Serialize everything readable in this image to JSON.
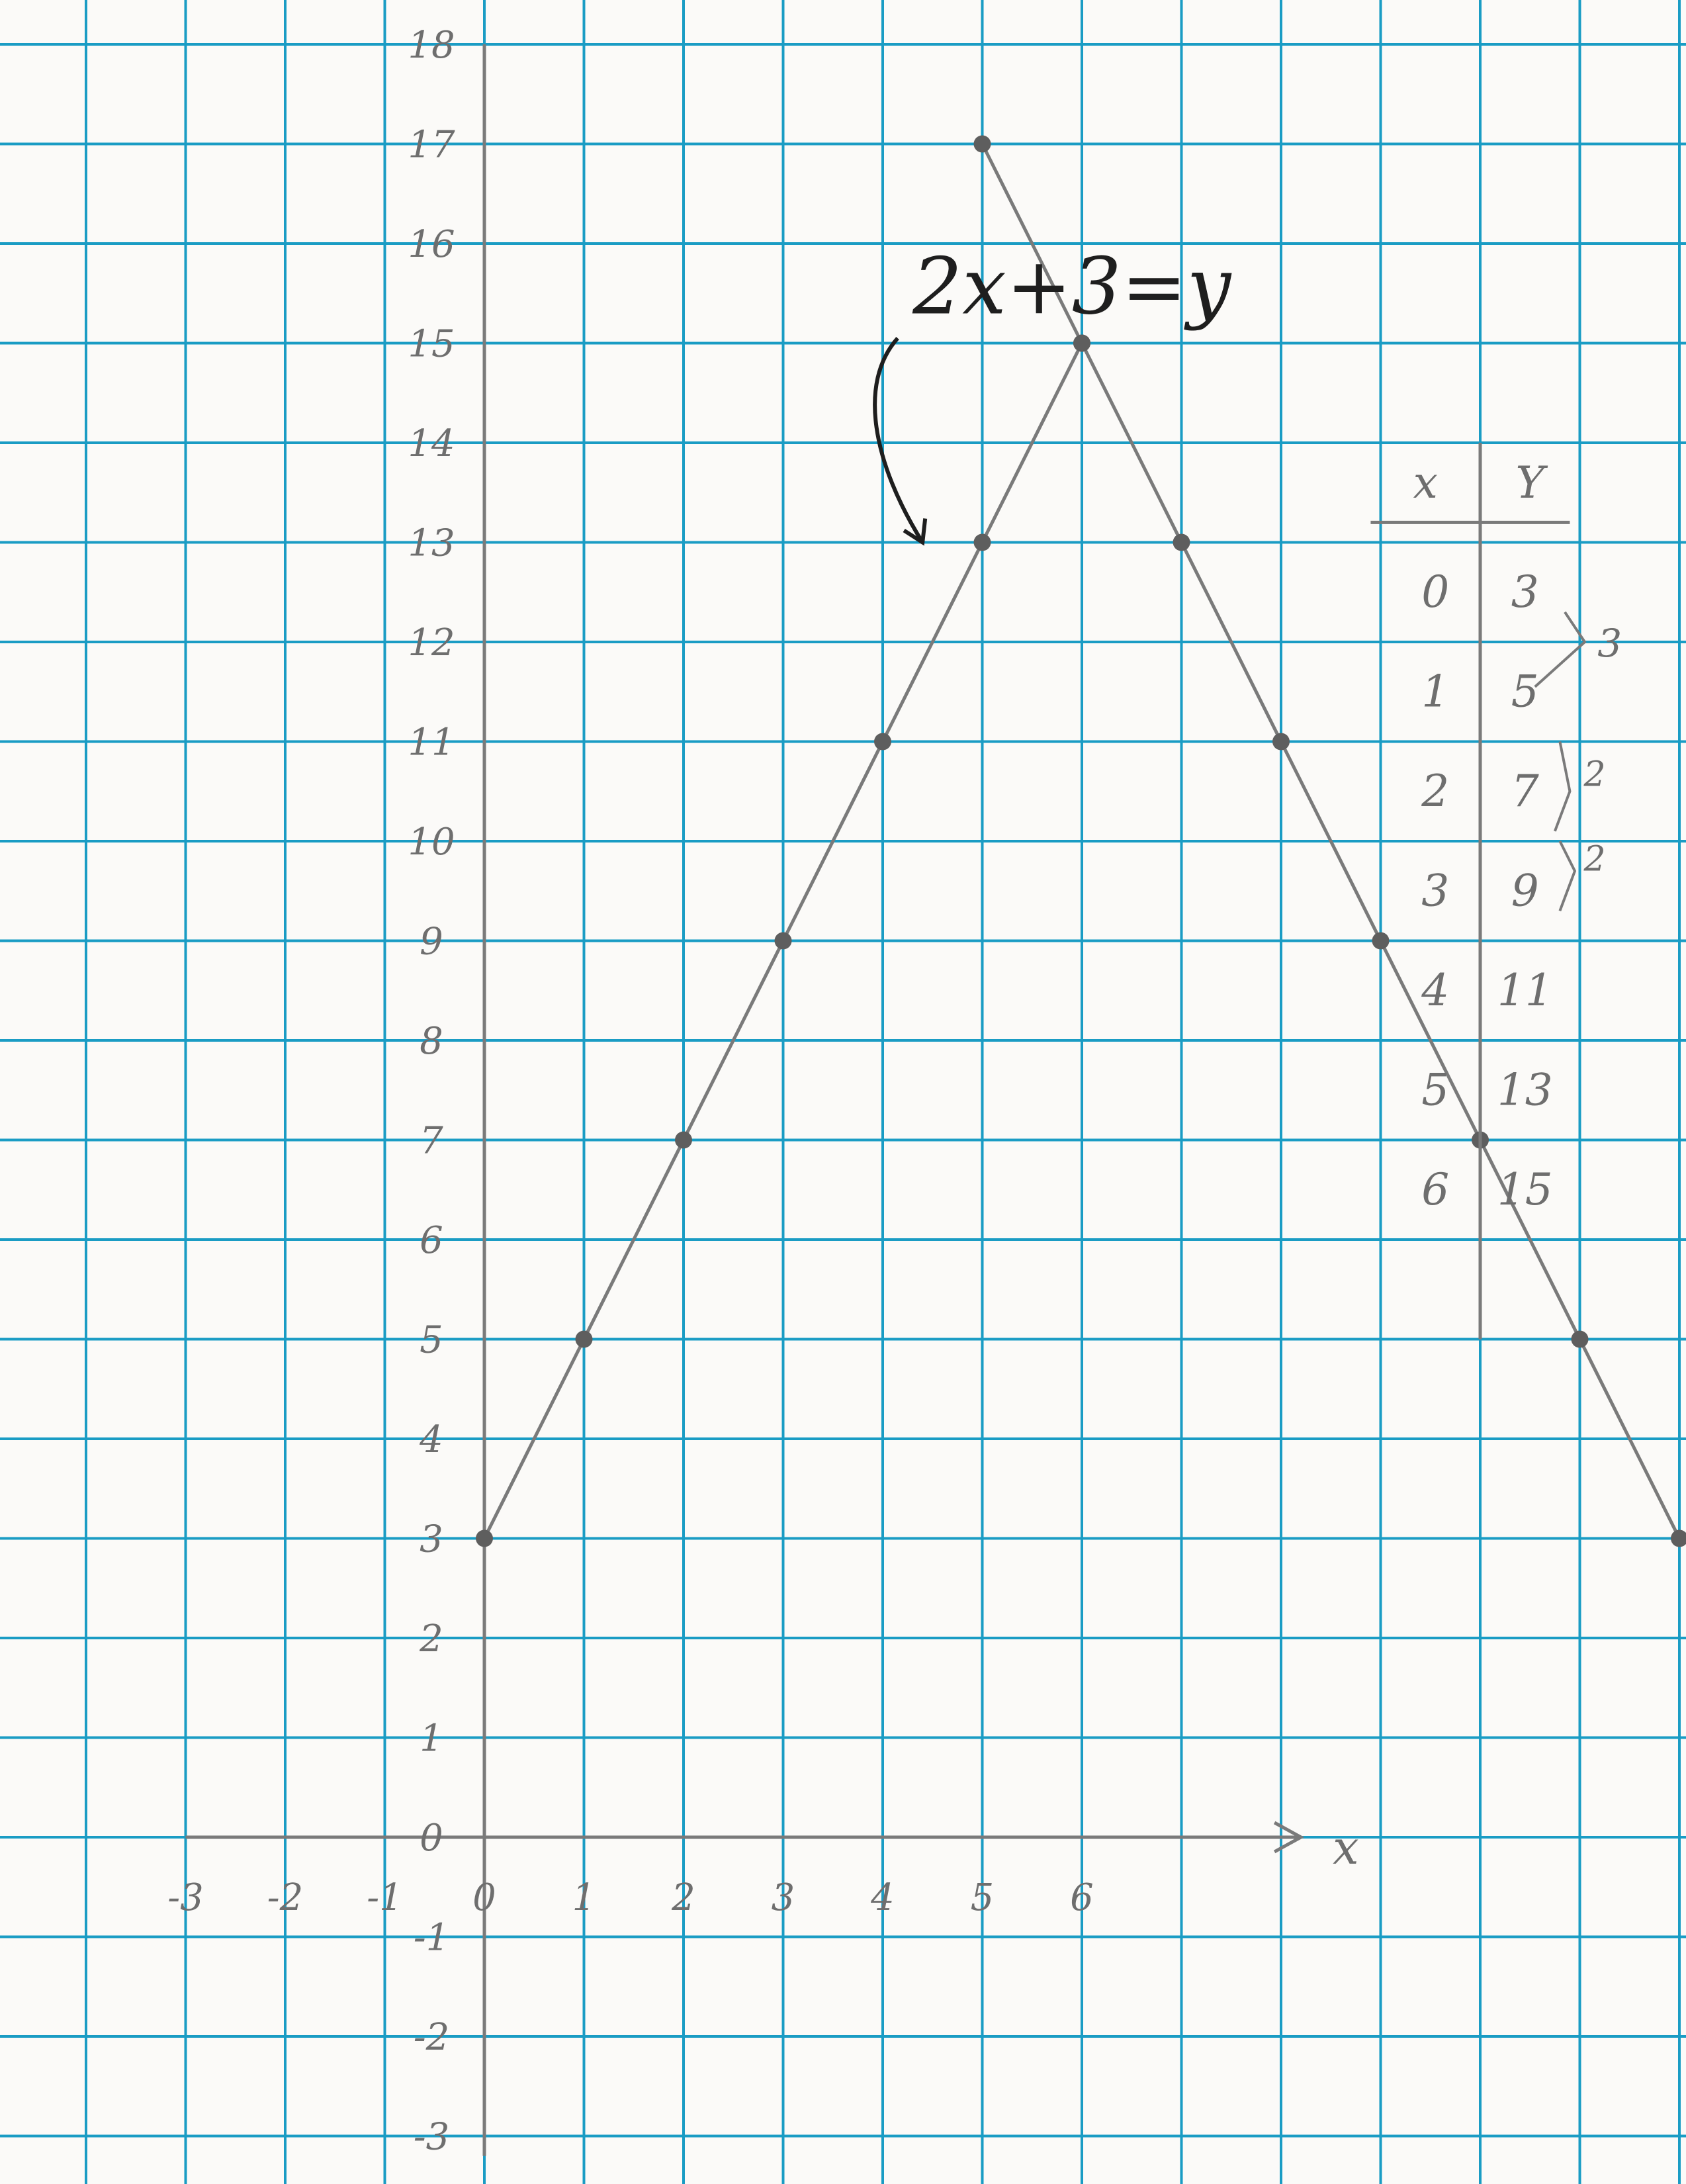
{
  "chart_data": {
    "type": "line",
    "title": "2x+3=y",
    "xlabel": "x",
    "ylabel": "",
    "xlim": [
      -3,
      11
    ],
    "ylim": [
      -3,
      18
    ],
    "grid": true,
    "x_tick_labels": [
      "-3",
      "-2",
      "-1",
      "0",
      "1",
      "2",
      "3",
      "4",
      "5",
      "6"
    ],
    "y_tick_labels": [
      "18",
      "17",
      "16",
      "15",
      "14",
      "13",
      "12",
      "11",
      "10",
      "9",
      "8",
      "7",
      "6",
      "5",
      "4",
      "3",
      "2",
      "1",
      "0",
      "-1",
      "-2",
      "-3"
    ],
    "series": [
      {
        "points": [
          [
            0,
            3
          ],
          [
            1,
            5
          ],
          [
            2,
            7
          ],
          [
            3,
            9
          ],
          [
            4,
            11
          ],
          [
            5,
            13
          ],
          [
            6,
            15
          ]
        ]
      },
      {
        "points": [
          [
            5,
            17
          ],
          [
            6,
            15
          ],
          [
            7,
            13
          ],
          [
            8,
            11
          ],
          [
            9,
            9
          ],
          [
            10,
            7
          ],
          [
            11,
            5
          ],
          [
            12,
            3
          ]
        ]
      }
    ],
    "table": {
      "headers": [
        "x",
        "Y"
      ],
      "rows": [
        [
          "0",
          "3"
        ],
        [
          "1",
          "5"
        ],
        [
          "2",
          "7"
        ],
        [
          "3",
          "9"
        ],
        [
          "4",
          "11"
        ],
        [
          "5",
          "13"
        ],
        [
          "6",
          "15"
        ]
      ],
      "differences": [
        "3",
        "2",
        "2"
      ]
    }
  },
  "colors": {
    "grid": "#1a9cc4",
    "pencil": "#7a7a7a",
    "ink": "#1e1e1e",
    "paper": "#fbfaf8"
  }
}
